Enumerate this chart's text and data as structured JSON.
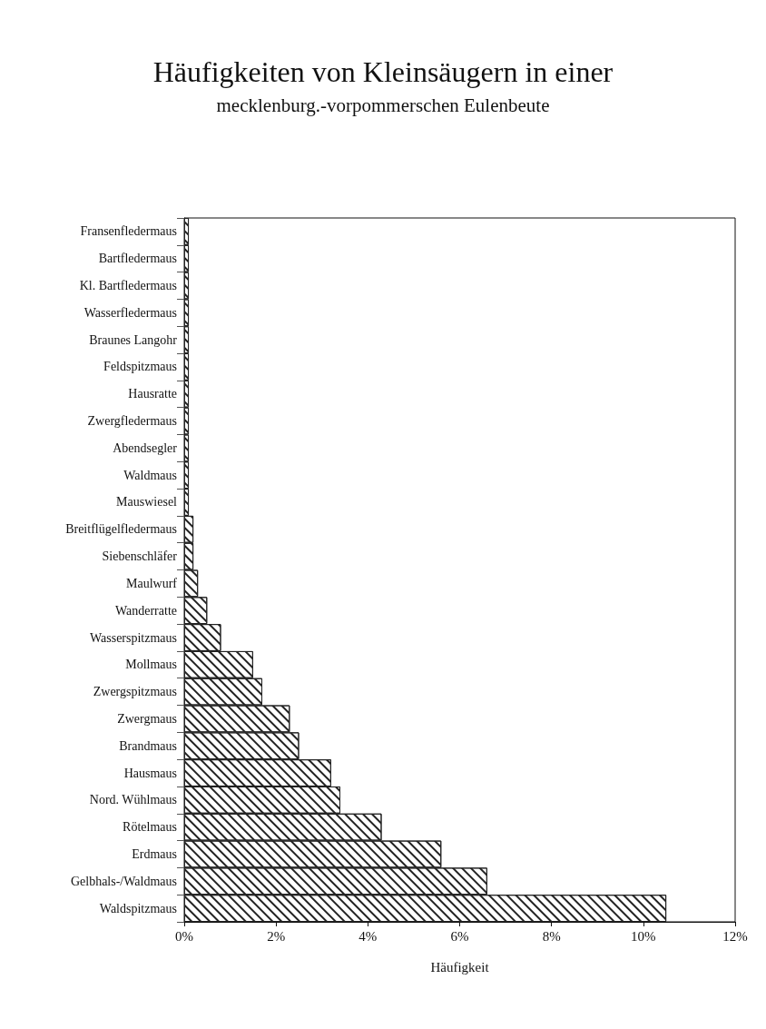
{
  "chart_data": {
    "type": "bar",
    "orientation": "horizontal",
    "title": "Häufigkeiten von Kleinsäugern in einer",
    "subtitle": "mecklenburg.-vorpommerschen Eulenbeute",
    "xlabel": "Häufigkeit",
    "categories": [
      "Fransenfledermaus",
      "Bartfledermaus",
      "Kl. Bartfledermaus",
      "Wasserfledermaus",
      "Braunes Langohr",
      "Feldspitzmaus",
      "Hausratte",
      "Zwergfledermaus",
      "Abendsegler",
      "Waldmaus",
      "Mauswiesel",
      "Breitflügelfledermaus",
      "Siebenschläfer",
      "Maulwurf",
      "Wanderratte",
      "Wasserspitzmaus",
      "Mollmaus",
      "Zwergspitzmaus",
      "Zwergmaus",
      "Brandmaus",
      "Hausmaus",
      "Nord. Wühlmaus",
      "Rötelmaus",
      "Erdmaus",
      "Gelbhals-/Waldmaus",
      "Waldspitzmaus"
    ],
    "values": [
      0.1,
      0.1,
      0.1,
      0.1,
      0.1,
      0.1,
      0.1,
      0.1,
      0.1,
      0.1,
      0.1,
      0.2,
      0.2,
      0.3,
      0.5,
      0.8,
      1.5,
      1.7,
      2.3,
      2.5,
      3.2,
      3.4,
      4.3,
      5.6,
      6.6,
      10.5
    ],
    "color": "#222222",
    "xlim": [
      0,
      12
    ],
    "xticks": [
      {
        "value": 0,
        "label": "0%"
      },
      {
        "value": 2,
        "label": "2%"
      },
      {
        "value": 4,
        "label": "4%"
      },
      {
        "value": 6,
        "label": "6%"
      },
      {
        "value": 8,
        "label": "8%"
      },
      {
        "value": 10,
        "label": "10%"
      },
      {
        "value": 12,
        "label": "12%"
      }
    ],
    "grid": false
  }
}
